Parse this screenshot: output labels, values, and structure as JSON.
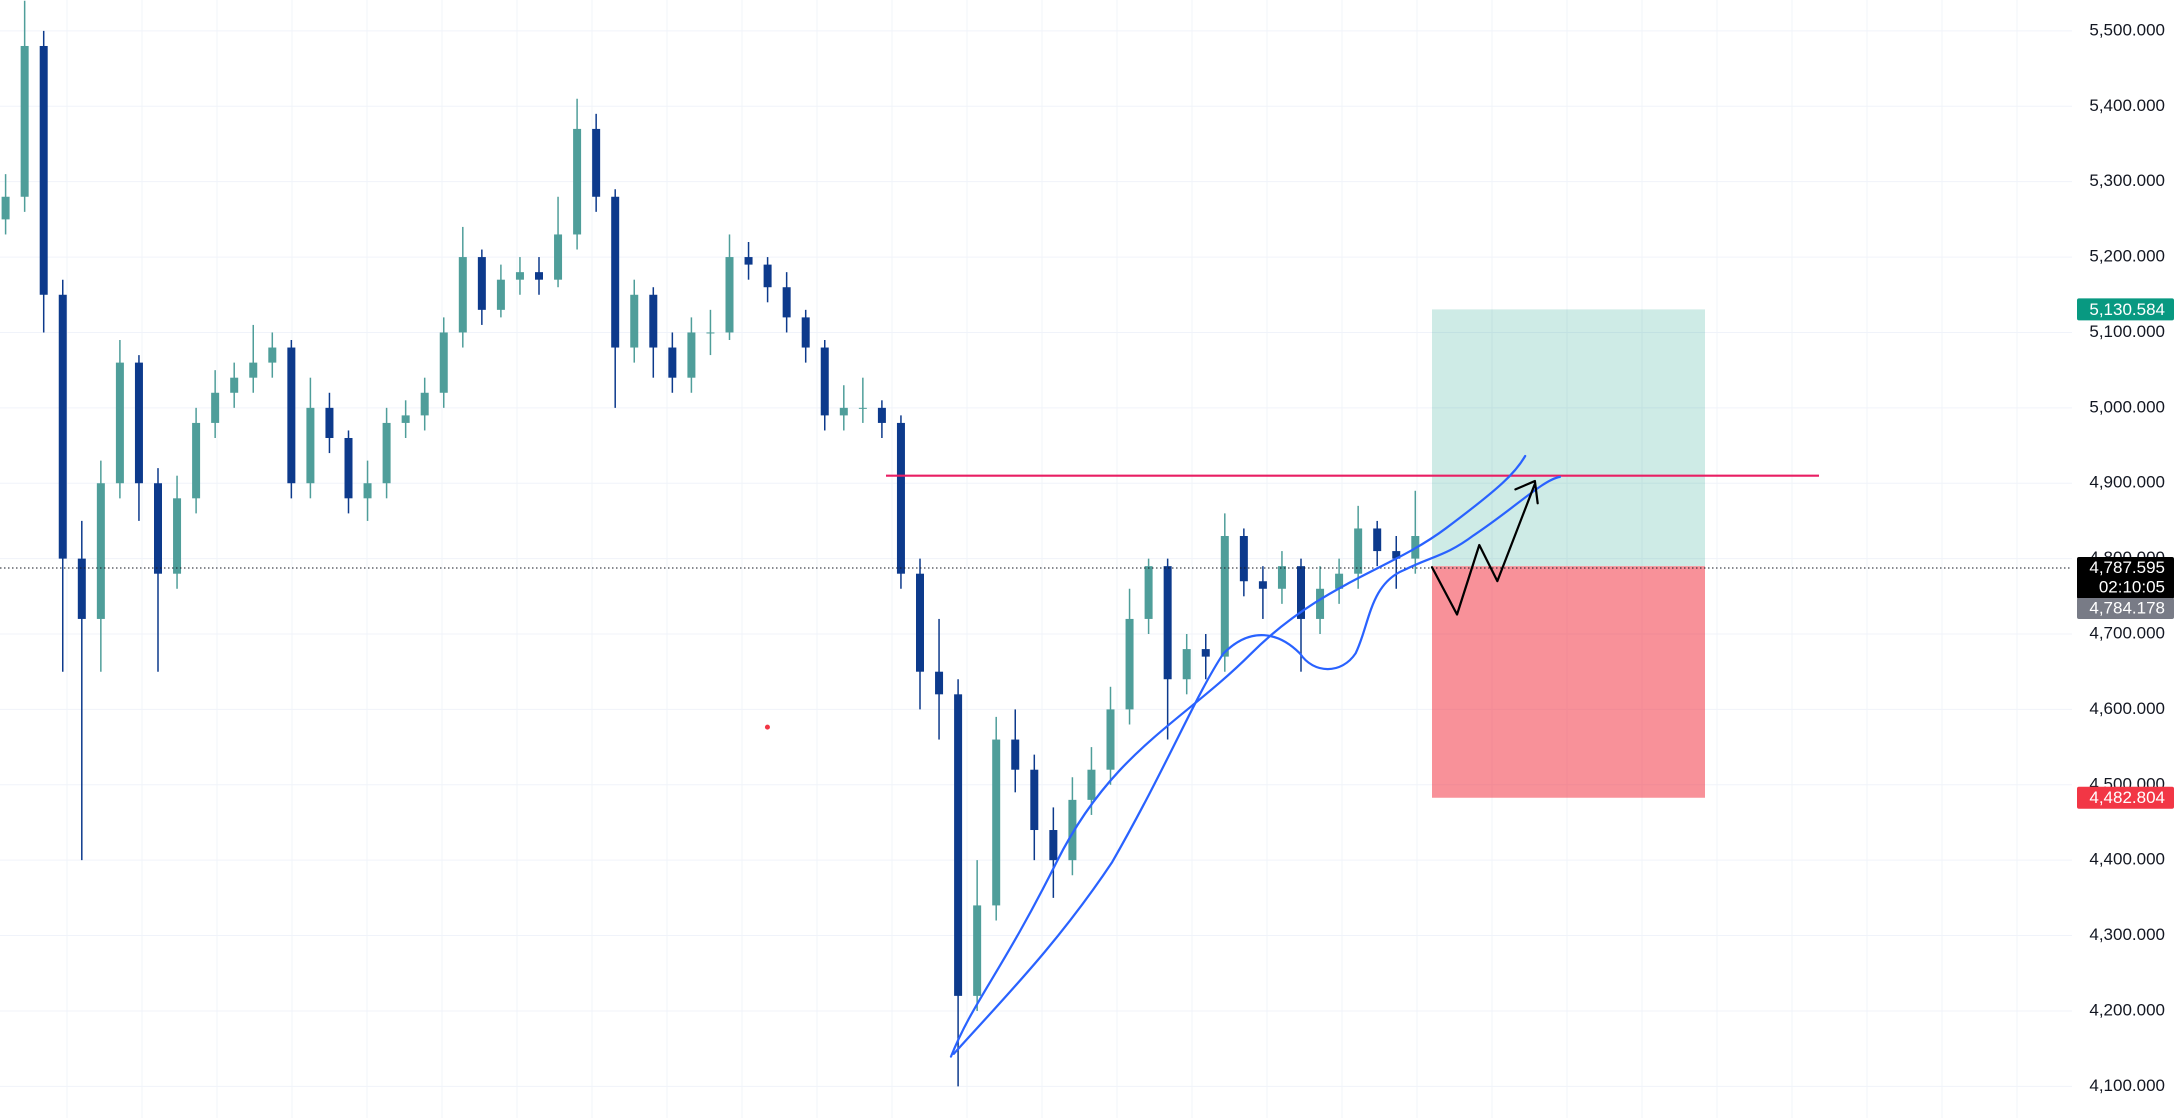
{
  "chart_data": {
    "type": "candlestick",
    "ylim": [
      4058,
      5541
    ],
    "yticks": [
      {
        "value": 4100,
        "label": "4,100.000"
      },
      {
        "value": 4200,
        "label": "4,200.000"
      },
      {
        "value": 4300,
        "label": "4,300.000"
      },
      {
        "value": 4400,
        "label": "4,400.000"
      },
      {
        "value": 4500,
        "label": "4,500.000"
      },
      {
        "value": 4600,
        "label": "4,600.000"
      },
      {
        "value": 4700,
        "label": "4,700.000"
      },
      {
        "value": 4800,
        "label": "4,800.000"
      },
      {
        "value": 4900,
        "label": "4,900.000"
      },
      {
        "value": 5000,
        "label": "5,000.000"
      },
      {
        "value": 5100,
        "label": "5,100.000"
      },
      {
        "value": 5200,
        "label": "5,200.000"
      },
      {
        "value": 5300,
        "label": "5,300.000"
      },
      {
        "value": 5400,
        "label": "5,400.000"
      },
      {
        "value": 5500,
        "label": "5,500.000"
      }
    ],
    "grid": true,
    "up_color": "#4f9e9a",
    "down_color": "#0d3a8c",
    "open": [
      5250,
      5280,
      5480,
      5150,
      4800,
      4720,
      4900,
      5060,
      4900,
      4780,
      4880,
      4980,
      5020,
      5040,
      5060,
      5080,
      4900,
      5000,
      4960,
      4880,
      4900,
      4980,
      4990,
      5020,
      5100,
      5200,
      5130,
      5170,
      5180,
      5170,
      5230,
      5370,
      5280,
      5080,
      5150,
      5080,
      5040,
      5100,
      5100,
      5200,
      5190,
      5160,
      5120,
      5080,
      4990,
      5000,
      5000,
      4980,
      4780,
      4650,
      4620,
      4220,
      4340,
      4560,
      4520,
      4440,
      4400,
      4480,
      4520,
      4600,
      4720,
      4790,
      4640,
      4680,
      4670,
      4830,
      4770,
      4760,
      4790,
      4720,
      4760,
      4780,
      4840,
      4810,
      4800
    ],
    "high": [
      5310,
      5540,
      5500,
      5170,
      4850,
      4930,
      5090,
      5070,
      4920,
      4910,
      5000,
      5050,
      5060,
      5110,
      5100,
      5090,
      5040,
      5020,
      4970,
      4930,
      5000,
      5010,
      5040,
      5120,
      5240,
      5210,
      5190,
      5200,
      5200,
      5280,
      5410,
      5390,
      5290,
      5170,
      5160,
      5100,
      5120,
      5130,
      5230,
      5220,
      5200,
      5180,
      5130,
      5090,
      5030,
      5040,
      5010,
      4990,
      4800,
      4720,
      4640,
      4400,
      4590,
      4600,
      4540,
      4470,
      4510,
      4550,
      4630,
      4760,
      4800,
      4800,
      4700,
      4700,
      4860,
      4840,
      4790,
      4810,
      4800,
      4790,
      4800,
      4870,
      4850,
      4830,
      4890
    ],
    "low": [
      5230,
      5260,
      5100,
      4650,
      4400,
      4650,
      4880,
      4850,
      4650,
      4760,
      4860,
      4960,
      5000,
      5020,
      5040,
      4880,
      4880,
      4940,
      4860,
      4850,
      4880,
      4960,
      4970,
      5000,
      5080,
      5110,
      5120,
      5150,
      5150,
      5160,
      5210,
      5260,
      5000,
      5060,
      5040,
      5020,
      5020,
      5070,
      5090,
      5170,
      5140,
      5100,
      5060,
      4970,
      4970,
      4980,
      4960,
      4760,
      4600,
      4560,
      4100,
      4200,
      4320,
      4490,
      4400,
      4350,
      4380,
      4460,
      4500,
      4580,
      4700,
      4560,
      4620,
      4640,
      4650,
      4750,
      4720,
      4740,
      4650,
      4700,
      4740,
      4760,
      4790,
      4760,
      4780
    ],
    "close": [
      5280,
      5480,
      5150,
      4800,
      4720,
      4900,
      5060,
      4900,
      4780,
      4880,
      4980,
      5020,
      5040,
      5060,
      5080,
      4900,
      5000,
      4960,
      4880,
      4900,
      4980,
      4990,
      5020,
      5100,
      5200,
      5130,
      5170,
      5180,
      5170,
      5230,
      5370,
      5280,
      5080,
      5150,
      5080,
      5040,
      5100,
      5100,
      5200,
      5190,
      5160,
      5120,
      5080,
      4990,
      5000,
      5000,
      4980,
      4780,
      4650,
      4620,
      4220,
      4340,
      4560,
      4520,
      4440,
      4400,
      4480,
      4520,
      4600,
      4720,
      4790,
      4640,
      4680,
      4670,
      4830,
      4770,
      4760,
      4790,
      4720,
      4760,
      4780,
      4840,
      4810,
      4800,
      4830
    ],
    "position": {
      "target": {
        "value": 5130.584,
        "label": "5,130.584",
        "color": "#089981"
      },
      "entry": 4790,
      "stop": {
        "value": 4482.804,
        "label": "4,482.804",
        "color": "#f23645"
      }
    },
    "resistance": {
      "value": 4910,
      "color": "#e91e63"
    },
    "last_price": {
      "value": 4787.595,
      "label": "4,787.595"
    },
    "countdown": "02:10:05",
    "bid_price": {
      "value": 4784.178,
      "label": "4,784.178"
    }
  }
}
